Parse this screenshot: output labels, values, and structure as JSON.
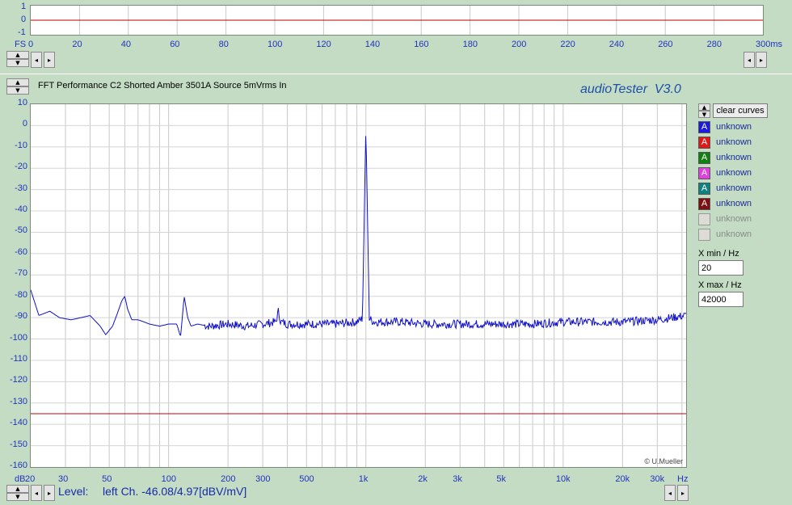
{
  "colors": {
    "background": "#c4dcc4",
    "trace_blue": "#1010c8",
    "limit_red": "#c00000",
    "axis_text": "#2233bb"
  },
  "top_panel": {
    "y_ticks": [
      "1",
      "0",
      "-1"
    ],
    "x_unit_left": "FS",
    "x_ticks": [
      "0",
      "20",
      "40",
      "60",
      "80",
      "100",
      "120",
      "140",
      "160",
      "180",
      "200",
      "220",
      "240",
      "260",
      "280",
      "300ms"
    ]
  },
  "main": {
    "graph_title": "FFT Performance C2 Shorted Amber 3501A Source 5mVrms In",
    "app_title": "audioTester  V3.0",
    "watermark": "© U.Mueller",
    "y_ticks": [
      "10",
      "0",
      "-10",
      "-20",
      "-30",
      "-40",
      "-50",
      "-60",
      "-70",
      "-80",
      "-90",
      "-100",
      "-110",
      "-120",
      "-130",
      "-140",
      "-150",
      "-160"
    ],
    "y_unit": "dB",
    "x_ticks": [
      "20",
      "30",
      "50",
      "100",
      "200",
      "300",
      "500",
      "1k",
      "2k",
      "3k",
      "5k",
      "10k",
      "20k",
      "30k"
    ],
    "x_unit": "Hz",
    "level_label": "Level:",
    "level_value": "left Ch. -46.08/4.97[dBV/mV]"
  },
  "side_panel": {
    "clear_button_label": "clear curves",
    "legend": [
      {
        "swatch_color": "#1c1ce0",
        "glyph": "A",
        "label": "unknown",
        "enabled": true
      },
      {
        "swatch_color": "#e01818",
        "glyph": "A",
        "label": "unknown",
        "enabled": true
      },
      {
        "swatch_color": "#108010",
        "glyph": "A",
        "label": "unknown",
        "enabled": true
      },
      {
        "swatch_color": "#e040e0",
        "glyph": "A",
        "label": "unknown",
        "enabled": true
      },
      {
        "swatch_color": "#108080",
        "glyph": "A",
        "label": "unknown",
        "enabled": true
      },
      {
        "swatch_color": "#801010",
        "glyph": "A",
        "label": "unknown",
        "enabled": true
      },
      {
        "swatch_color": "#dcdcd4",
        "glyph": "",
        "label": "unknown",
        "enabled": false
      },
      {
        "swatch_color": "#dcdcd4",
        "glyph": "",
        "label": "unknown",
        "enabled": false
      }
    ],
    "xmin_label": "X min / Hz",
    "xmin_value": "20",
    "xmax_label": "X max / Hz",
    "xmax_value": "42000"
  },
  "icons": {
    "spin_up": "spin-up-icon",
    "spin_down": "spin-down-icon",
    "scroll_left": "scroll-left-icon",
    "scroll_right": "scroll-right-icon"
  },
  "chart_data": [
    {
      "type": "line",
      "title": "",
      "xlabel": "ms",
      "ylabel": "FS",
      "xlim": [
        0,
        300
      ],
      "ylim": [
        -1,
        1
      ],
      "grid": true,
      "series": [
        {
          "color": "#c00000",
          "x": [
            0,
            300
          ],
          "y": [
            0,
            0
          ]
        }
      ]
    },
    {
      "type": "line",
      "title": "FFT Performance C2 Shorted Amber 3501A Source 5mVrms In",
      "xlabel": "Hz",
      "ylabel": "dB",
      "x_scale": "log",
      "xlim": [
        20,
        42000
      ],
      "ylim": [
        -160,
        10
      ],
      "grid": true,
      "series": [
        {
          "color": "#1010c8",
          "x": [
            20,
            22,
            25,
            28,
            32,
            36,
            40,
            45,
            48,
            52,
            55,
            58,
            60,
            62,
            65,
            70,
            75,
            80,
            90,
            100,
            110,
            115,
            120,
            125,
            130,
            140,
            160,
            200,
            250,
            300,
            350,
            360,
            370,
            400,
            500,
            700,
            900,
            980,
            1000,
            1020,
            1100,
            1500,
            2000,
            3000,
            5000,
            7000,
            10000,
            15000,
            20000,
            30000,
            42000
          ],
          "y": [
            -77,
            -89,
            -87,
            -90,
            -91,
            -90,
            -89,
            -94,
            -98,
            -94,
            -88,
            -82,
            -80,
            -86,
            -91,
            -91,
            -92,
            -93,
            -94,
            -93,
            -93,
            -99,
            -80,
            -90,
            -94,
            -93,
            -94,
            -93,
            -94,
            -93,
            -92,
            -87,
            -92,
            -93,
            -93,
            -93,
            -92,
            -90,
            0,
            -90,
            -92,
            -92,
            -93,
            -93,
            -93,
            -93,
            -92,
            -92,
            -92,
            -91,
            -89
          ]
        },
        {
          "color": "#c00000",
          "x": [
            20,
            42000
          ],
          "y": [
            -135,
            -135
          ]
        }
      ]
    }
  ]
}
